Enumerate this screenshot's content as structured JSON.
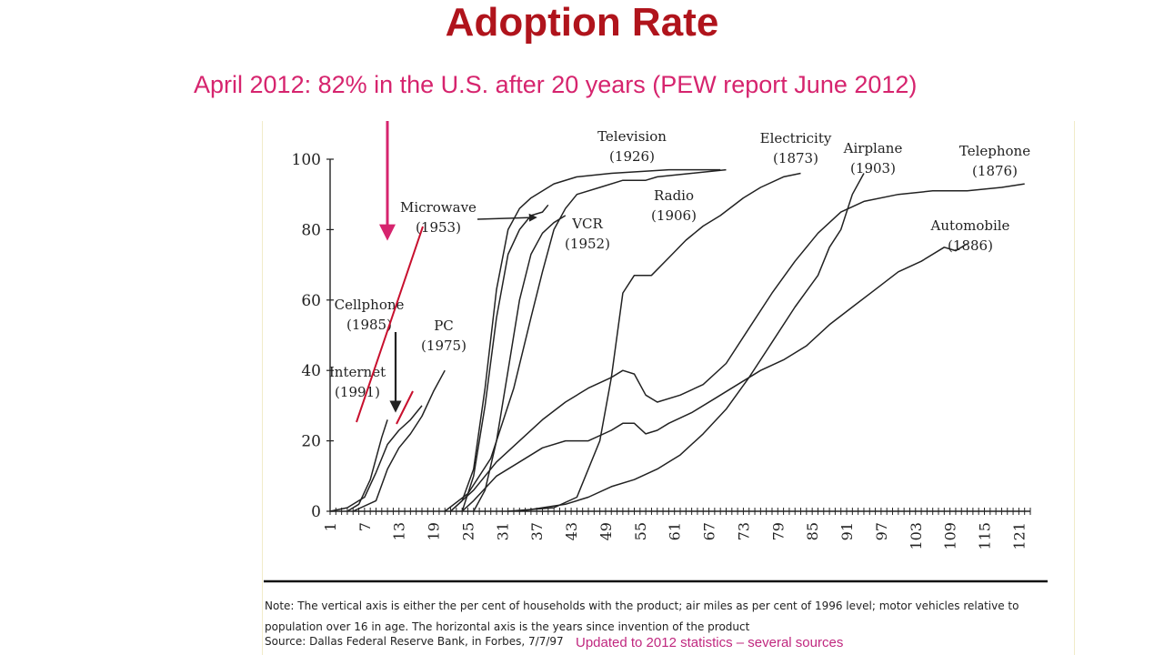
{
  "slide": {
    "title": "Adoption Rate",
    "annotation": "April 2012: 82% in the U.S. after 20 years (PEW report June 2012)",
    "note_line1": "Note: The vertical axis is either the per cent of households with the product; air miles as per cent of 1996 level; motor vehicles relative to",
    "note_line2": "population over 16 in age. The horizontal axis is the years since invention of the product",
    "source": "Source: Dallas Federal Reserve Bank, in Forbes, 7/7/97",
    "updated": "Updated to 2012 statistics – several sources"
  },
  "colors": {
    "title": "#b0141c",
    "annotation": "#d6246e",
    "updated": "#c0287f",
    "series": "#222222",
    "trend": "#c8102e"
  },
  "chart_data": {
    "type": "line",
    "title": "",
    "xlabel": "",
    "ylabel": "",
    "xlim": [
      1,
      123
    ],
    "ylim": [
      0,
      100
    ],
    "y_ticks": [
      0,
      20,
      40,
      60,
      80,
      100
    ],
    "x_ticks": [
      1,
      7,
      13,
      19,
      25,
      31,
      37,
      43,
      49,
      55,
      61,
      67,
      73,
      79,
      85,
      91,
      97,
      103,
      109,
      115,
      121
    ],
    "grid": false,
    "series": [
      {
        "name": "Cellphone",
        "year": "(1985)",
        "points": [
          [
            1,
            0
          ],
          [
            4,
            1
          ],
          [
            7,
            4
          ],
          [
            9,
            11
          ],
          [
            11,
            19
          ],
          [
            13,
            23
          ],
          [
            15,
            26
          ],
          [
            17,
            30
          ]
        ]
      },
      {
        "name": "Internet",
        "year": "(1991)",
        "points": [
          [
            4,
            0
          ],
          [
            6,
            2
          ],
          [
            8,
            9
          ],
          [
            10,
            21
          ],
          [
            11,
            26
          ]
        ]
      },
      {
        "name": "PC",
        "year": "(1975)",
        "points": [
          [
            5,
            0
          ],
          [
            9,
            3
          ],
          [
            11,
            12
          ],
          [
            13,
            18
          ],
          [
            15,
            22
          ],
          [
            17,
            27
          ],
          [
            19,
            34
          ],
          [
            21,
            40
          ]
        ]
      },
      {
        "name": "Microwave",
        "year": "(1953)",
        "points": [
          [
            24,
            0
          ],
          [
            26,
            10
          ],
          [
            28,
            30
          ],
          [
            30,
            55
          ],
          [
            32,
            73
          ],
          [
            34,
            80
          ],
          [
            36,
            84
          ],
          [
            38,
            85
          ],
          [
            39,
            87
          ]
        ]
      },
      {
        "name": "VCR",
        "year": "(1952)",
        "points": [
          [
            26,
            0
          ],
          [
            28,
            6
          ],
          [
            30,
            20
          ],
          [
            32,
            40
          ],
          [
            34,
            60
          ],
          [
            36,
            73
          ],
          [
            38,
            79
          ],
          [
            40,
            82
          ],
          [
            42,
            84
          ]
        ]
      },
      {
        "name": "Television",
        "year": "(1926)",
        "points": [
          [
            22,
            0
          ],
          [
            24,
            3
          ],
          [
            26,
            12
          ],
          [
            28,
            35
          ],
          [
            30,
            63
          ],
          [
            32,
            80
          ],
          [
            34,
            86
          ],
          [
            36,
            89
          ],
          [
            40,
            93
          ],
          [
            44,
            95
          ],
          [
            50,
            96
          ],
          [
            60,
            97
          ],
          [
            69,
            97
          ]
        ]
      },
      {
        "name": "Radio",
        "year": "(1906)",
        "points": [
          [
            21,
            0
          ],
          [
            25,
            5
          ],
          [
            29,
            15
          ],
          [
            33,
            35
          ],
          [
            36,
            55
          ],
          [
            38,
            68
          ],
          [
            40,
            80
          ],
          [
            42,
            86
          ],
          [
            44,
            90
          ],
          [
            48,
            92
          ],
          [
            52,
            94
          ],
          [
            56,
            94
          ],
          [
            58,
            95
          ],
          [
            64,
            96
          ],
          [
            70,
            97
          ]
        ]
      },
      {
        "name": "Electricity",
        "year": "(1873)",
        "points": [
          [
            32,
            0
          ],
          [
            40,
            1
          ],
          [
            44,
            4
          ],
          [
            48,
            20
          ],
          [
            50,
            38
          ],
          [
            52,
            62
          ],
          [
            54,
            67
          ],
          [
            57,
            67
          ],
          [
            60,
            72
          ],
          [
            63,
            77
          ],
          [
            66,
            81
          ],
          [
            69,
            84
          ],
          [
            73,
            89
          ],
          [
            76,
            92
          ],
          [
            80,
            95
          ],
          [
            83,
            96
          ]
        ]
      },
      {
        "name": "Telephone",
        "year": "(1876)",
        "points": [
          [
            22,
            0
          ],
          [
            26,
            6
          ],
          [
            30,
            14
          ],
          [
            34,
            20
          ],
          [
            38,
            26
          ],
          [
            42,
            31
          ],
          [
            46,
            35
          ],
          [
            50,
            38
          ],
          [
            52,
            40
          ],
          [
            54,
            39
          ],
          [
            56,
            33
          ],
          [
            58,
            31
          ],
          [
            62,
            33
          ],
          [
            66,
            36
          ],
          [
            70,
            42
          ],
          [
            74,
            52
          ],
          [
            78,
            62
          ],
          [
            82,
            71
          ],
          [
            86,
            79
          ],
          [
            90,
            85
          ],
          [
            94,
            88
          ],
          [
            100,
            90
          ],
          [
            106,
            91
          ],
          [
            112,
            91
          ],
          [
            118,
            92
          ],
          [
            122,
            93
          ]
        ]
      },
      {
        "name": "Airplane",
        "year": "(1903)",
        "points": [
          [
            34,
            0
          ],
          [
            38,
            1
          ],
          [
            42,
            2
          ],
          [
            46,
            4
          ],
          [
            50,
            7
          ],
          [
            54,
            9
          ],
          [
            58,
            12
          ],
          [
            62,
            16
          ],
          [
            66,
            22
          ],
          [
            70,
            29
          ],
          [
            74,
            38
          ],
          [
            78,
            48
          ],
          [
            82,
            58
          ],
          [
            86,
            67
          ],
          [
            88,
            75
          ],
          [
            90,
            80
          ],
          [
            92,
            90
          ],
          [
            94,
            96
          ]
        ]
      },
      {
        "name": "Automobile",
        "year": "(1886)",
        "points": [
          [
            24,
            0
          ],
          [
            26,
            3
          ],
          [
            30,
            10
          ],
          [
            34,
            14
          ],
          [
            38,
            18
          ],
          [
            42,
            20
          ],
          [
            46,
            20
          ],
          [
            50,
            23
          ],
          [
            52,
            25
          ],
          [
            54,
            25
          ],
          [
            56,
            22
          ],
          [
            58,
            23
          ],
          [
            60,
            25
          ],
          [
            64,
            28
          ],
          [
            68,
            32
          ],
          [
            72,
            36
          ],
          [
            76,
            40
          ],
          [
            80,
            43
          ],
          [
            84,
            47
          ],
          [
            88,
            53
          ],
          [
            92,
            58
          ],
          [
            96,
            63
          ],
          [
            100,
            68
          ],
          [
            104,
            71
          ],
          [
            108,
            75
          ],
          [
            110,
            74
          ],
          [
            112,
            76
          ]
        ]
      }
    ]
  }
}
